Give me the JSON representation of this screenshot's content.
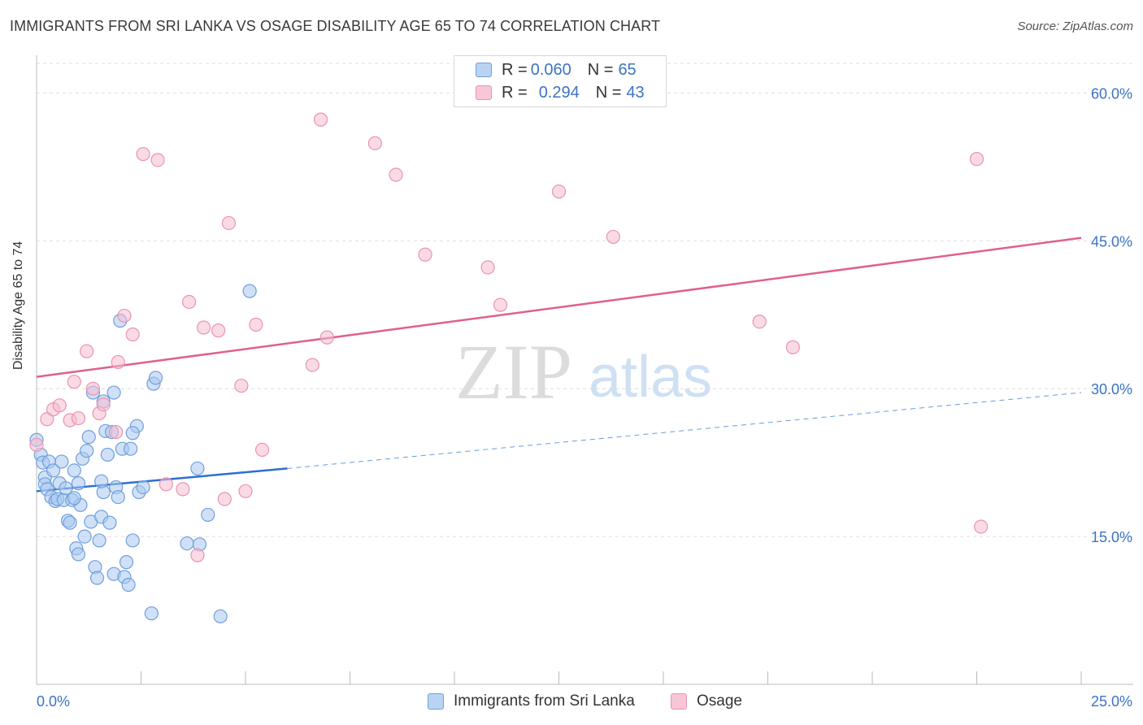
{
  "header": {
    "title": "IMMIGRANTS FROM SRI LANKA VS OSAGE DISABILITY AGE 65 TO 74 CORRELATION CHART",
    "source": "Source: ZipAtlas.com"
  },
  "watermark": {
    "zip": "ZIP",
    "atlas": "atlas"
  },
  "legend_top": {
    "rows": [
      {
        "r_label": "R = ",
        "r_value": "0.060",
        "n_label": "N = ",
        "n_value": "65"
      },
      {
        "r_label": "R = ",
        "r_value": "0.294",
        "n_label": "N = ",
        "n_value": "43"
      }
    ]
  },
  "legend_bottom": {
    "items": [
      "Immigrants from Sri Lanka",
      "Osage"
    ]
  },
  "colors": {
    "blue_fill": "#a9c8f0",
    "blue_stroke": "#6f9fdc",
    "blue_line": "#2e6fd0",
    "pink_fill": "#f6bcd0",
    "pink_stroke": "#e994b2",
    "pink_line": "#e0608c",
    "axis_label": "#3b73c4",
    "grid": "#dddddd"
  },
  "chart_data": {
    "type": "scatter",
    "title": "IMMIGRANTS FROM SRI LANKA VS OSAGE DISABILITY AGE 65 TO 74 CORRELATION CHART",
    "xlabel": "",
    "ylabel": "Disability Age 65 to 74",
    "xlim": [
      0,
      25
    ],
    "ylim": [
      0,
      63
    ],
    "x_tick_labels": [
      "0.0%",
      "25.0%"
    ],
    "y_ticks": [
      15,
      30,
      45,
      60
    ],
    "y_tick_labels": [
      "15.0%",
      "30.0%",
      "45.0%",
      "60.0%"
    ],
    "grid": true,
    "legend_position": "top-center",
    "series": [
      {
        "name": "Immigrants from Sri Lanka",
        "color": "#a9c8f0",
        "r": 0.06,
        "n": 65,
        "trend": {
          "x": [
            0,
            6.0
          ],
          "y": [
            19.6,
            21.9
          ],
          "extended_to": [
            25,
            29.6
          ]
        },
        "points": [
          [
            0.0,
            24.8
          ],
          [
            0.1,
            23.3
          ],
          [
            0.15,
            22.5
          ],
          [
            0.2,
            21.0
          ],
          [
            0.2,
            20.3
          ],
          [
            0.25,
            19.8
          ],
          [
            0.3,
            22.6
          ],
          [
            0.35,
            19.0
          ],
          [
            0.4,
            21.7
          ],
          [
            0.45,
            18.6
          ],
          [
            0.5,
            18.8
          ],
          [
            0.55,
            20.4
          ],
          [
            0.6,
            22.6
          ],
          [
            0.65,
            18.7
          ],
          [
            0.7,
            19.9
          ],
          [
            0.75,
            16.6
          ],
          [
            0.8,
            16.4
          ],
          [
            0.85,
            18.7
          ],
          [
            0.9,
            21.7
          ],
          [
            0.95,
            13.8
          ],
          [
            1.0,
            13.2
          ],
          [
            1.05,
            18.2
          ],
          [
            1.1,
            22.9
          ],
          [
            1.15,
            15.0
          ],
          [
            1.2,
            23.7
          ],
          [
            1.25,
            25.1
          ],
          [
            1.3,
            16.5
          ],
          [
            1.35,
            29.6
          ],
          [
            1.4,
            11.9
          ],
          [
            1.45,
            10.8
          ],
          [
            1.5,
            14.6
          ],
          [
            1.55,
            17.0
          ],
          [
            1.6,
            19.5
          ],
          [
            1.65,
            25.7
          ],
          [
            1.7,
            23.3
          ],
          [
            1.75,
            16.4
          ],
          [
            1.8,
            25.6
          ],
          [
            1.85,
            11.2
          ],
          [
            1.9,
            20.0
          ],
          [
            1.95,
            19.0
          ],
          [
            2.0,
            36.9
          ],
          [
            2.05,
            23.9
          ],
          [
            2.1,
            10.9
          ],
          [
            2.15,
            12.4
          ],
          [
            2.2,
            10.1
          ],
          [
            2.25,
            23.9
          ],
          [
            2.3,
            14.6
          ],
          [
            2.4,
            26.2
          ],
          [
            2.45,
            19.5
          ],
          [
            2.55,
            20.0
          ],
          [
            2.75,
            7.2
          ],
          [
            2.8,
            30.5
          ],
          [
            2.85,
            31.1
          ],
          [
            2.3,
            25.5
          ],
          [
            1.85,
            29.6
          ],
          [
            1.6,
            28.7
          ],
          [
            1.55,
            20.6
          ],
          [
            1.0,
            20.4
          ],
          [
            0.9,
            18.9
          ],
          [
            3.6,
            14.3
          ],
          [
            3.9,
            14.2
          ],
          [
            3.85,
            21.9
          ],
          [
            4.1,
            17.2
          ],
          [
            4.4,
            6.9
          ],
          [
            5.1,
            39.9
          ]
        ]
      },
      {
        "name": "Osage",
        "color": "#f6bcd0",
        "r": 0.294,
        "n": 43,
        "trend": {
          "x": [
            0,
            25
          ],
          "y": [
            31.2,
            45.3
          ]
        },
        "points": [
          [
            0.0,
            24.3
          ],
          [
            0.25,
            26.9
          ],
          [
            0.4,
            27.9
          ],
          [
            0.55,
            28.3
          ],
          [
            0.8,
            26.8
          ],
          [
            0.9,
            30.7
          ],
          [
            1.0,
            27.0
          ],
          [
            1.2,
            33.8
          ],
          [
            1.35,
            30.0
          ],
          [
            1.5,
            27.5
          ],
          [
            1.6,
            28.4
          ],
          [
            1.9,
            25.6
          ],
          [
            1.95,
            32.7
          ],
          [
            2.1,
            37.4
          ],
          [
            2.3,
            35.5
          ],
          [
            2.55,
            53.8
          ],
          [
            2.9,
            53.2
          ],
          [
            3.1,
            20.3
          ],
          [
            3.5,
            19.8
          ],
          [
            3.65,
            38.8
          ],
          [
            3.85,
            13.1
          ],
          [
            4.0,
            36.2
          ],
          [
            4.35,
            35.9
          ],
          [
            4.5,
            18.8
          ],
          [
            4.6,
            46.8
          ],
          [
            4.9,
            30.3
          ],
          [
            5.0,
            19.6
          ],
          [
            5.25,
            36.5
          ],
          [
            5.4,
            23.8
          ],
          [
            6.6,
            32.4
          ],
          [
            6.8,
            57.3
          ],
          [
            6.95,
            35.2
          ],
          [
            8.1,
            54.9
          ],
          [
            8.6,
            51.7
          ],
          [
            9.3,
            43.6
          ],
          [
            10.8,
            42.3
          ],
          [
            11.1,
            38.5
          ],
          [
            12.5,
            50.0
          ],
          [
            13.8,
            45.4
          ],
          [
            17.3,
            36.8
          ],
          [
            18.1,
            34.2
          ],
          [
            22.5,
            53.3
          ],
          [
            22.6,
            16.0
          ]
        ]
      }
    ]
  }
}
